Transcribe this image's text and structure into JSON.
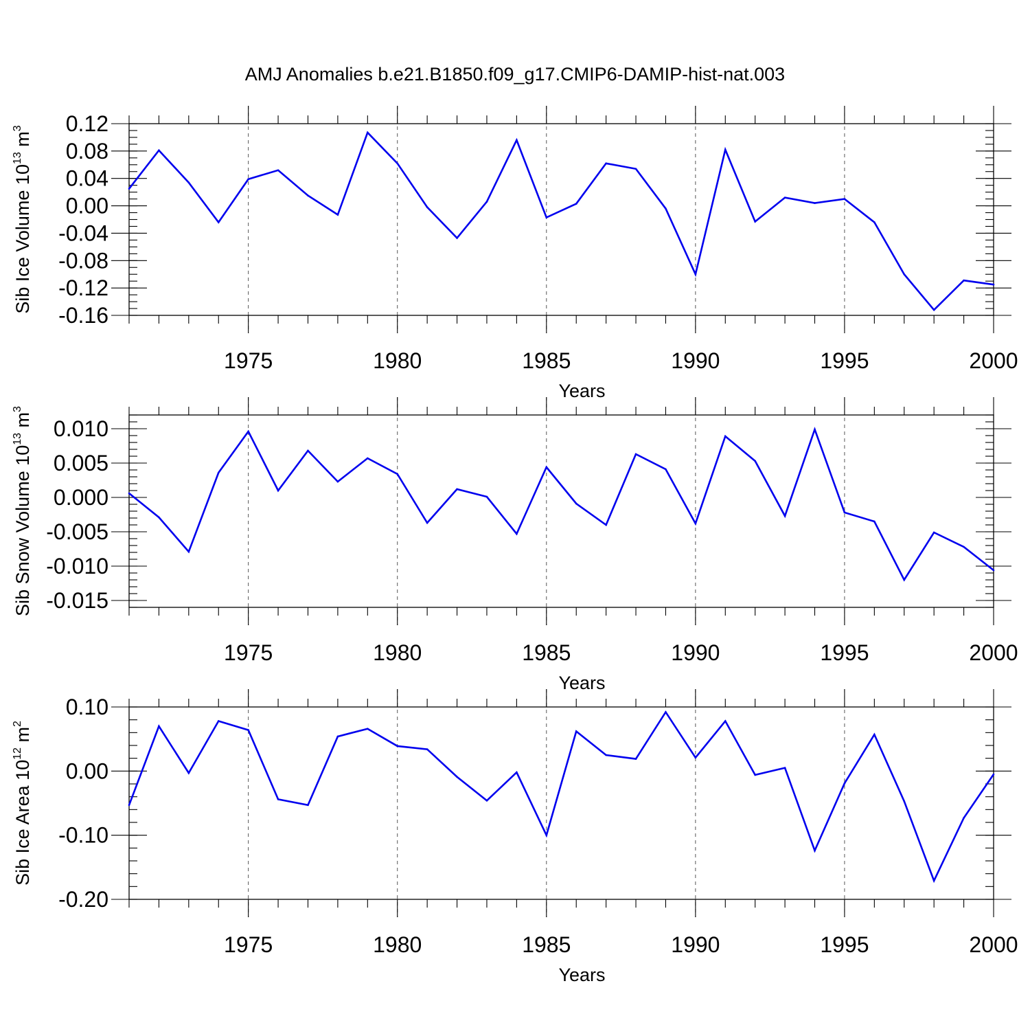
{
  "figure": {
    "title": "AMJ Anomalies b.e21.B1850.f09_g17.CMIP6-DAMIP-hist-nat.003"
  },
  "style": {
    "line_color": "#0000ee",
    "axis_color": "#000000",
    "grid_color": "#555555"
  },
  "chart_data": [
    {
      "type": "line",
      "id": "ice-volume",
      "ylabel_main": "Sib Ice Volume 10",
      "ylabel_exp": "13",
      "ylabel_unit": " m",
      "ylabel_unit_exp": "3",
      "xlabel": "Years",
      "xlim": [
        1971,
        2000
      ],
      "ylim": [
        -0.16,
        0.12
      ],
      "major_yticks": [
        -0.16,
        -0.12,
        -0.08,
        -0.04,
        0.0,
        0.04,
        0.08,
        0.12
      ],
      "ytick_labels": [
        "-0.16",
        "-0.12",
        "-0.08",
        "-0.04",
        "0.00",
        "0.04",
        "0.08",
        "0.12"
      ],
      "minor_ystep": 0.01,
      "major_xticks": [
        1975,
        1980,
        1985,
        1990,
        1995,
        2000
      ],
      "xtick_labels": [
        "1975",
        "1980",
        "1985",
        "1990",
        "1995",
        "2000"
      ],
      "grid_x": [
        1975,
        1980,
        1985,
        1990,
        1995
      ],
      "series": [
        {
          "name": "Sib Ice Volume",
          "x": [
            1971,
            1972,
            1973,
            1974,
            1975,
            1976,
            1977,
            1978,
            1979,
            1980,
            1981,
            1982,
            1983,
            1984,
            1985,
            1986,
            1987,
            1988,
            1989,
            1990,
            1991,
            1992,
            1993,
            1994,
            1995,
            1996,
            1997,
            1998,
            1999,
            2000
          ],
          "values": [
            0.025,
            0.081,
            0.034,
            -0.024,
            0.039,
            0.052,
            0.015,
            -0.013,
            0.107,
            0.062,
            -0.002,
            -0.047,
            0.006,
            0.096,
            -0.017,
            0.003,
            0.062,
            0.054,
            -0.004,
            -0.1,
            0.082,
            -0.023,
            0.012,
            0.004,
            0.01,
            -0.024,
            -0.1,
            -0.152,
            -0.109,
            -0.115
          ]
        }
      ]
    },
    {
      "type": "line",
      "id": "snow-volume",
      "ylabel_main": "Sib Snow Volume 10",
      "ylabel_exp": "13",
      "ylabel_unit": " m",
      "ylabel_unit_exp": "3",
      "xlabel": "Years",
      "xlim": [
        1971,
        2000
      ],
      "ylim": [
        -0.016,
        0.012
      ],
      "major_yticks": [
        -0.015,
        -0.01,
        -0.005,
        0.0,
        0.005,
        0.01
      ],
      "ytick_labels": [
        "-0.015",
        "-0.010",
        "-0.005",
        "0.000",
        "0.005",
        "0.010"
      ],
      "minor_ystep": 0.001,
      "major_xticks": [
        1975,
        1980,
        1985,
        1990,
        1995,
        2000
      ],
      "xtick_labels": [
        "1975",
        "1980",
        "1985",
        "1990",
        "1995",
        "2000"
      ],
      "grid_x": [
        1975,
        1980,
        1985,
        1990,
        1995
      ],
      "series": [
        {
          "name": "Sib Snow Volume",
          "x": [
            1971,
            1972,
            1973,
            1974,
            1975,
            1976,
            1977,
            1978,
            1979,
            1980,
            1981,
            1982,
            1983,
            1984,
            1985,
            1986,
            1987,
            1988,
            1989,
            1990,
            1991,
            1992,
            1993,
            1994,
            1995,
            1996,
            1997,
            1998,
            1999,
            2000
          ],
          "values": [
            0.0006,
            -0.0029,
            -0.0079,
            0.0036,
            0.0096,
            0.001,
            0.0068,
            0.0023,
            0.0057,
            0.0034,
            -0.0037,
            0.0012,
            0.0001,
            -0.0053,
            0.0044,
            -0.0009,
            -0.004,
            0.0063,
            0.0041,
            -0.0038,
            0.0089,
            0.0053,
            -0.0027,
            0.0099,
            -0.0022,
            -0.0035,
            -0.012,
            -0.0051,
            -0.0072,
            -0.0106
          ]
        }
      ]
    },
    {
      "type": "line",
      "id": "ice-area",
      "ylabel_main": "Sib Ice Area 10",
      "ylabel_exp": "12",
      "ylabel_unit": " m",
      "ylabel_unit_exp": "2",
      "xlabel": "Years",
      "xlim": [
        1971,
        2000
      ],
      "ylim": [
        -0.2,
        0.1
      ],
      "major_yticks": [
        -0.2,
        -0.1,
        0.0,
        0.1
      ],
      "ytick_labels": [
        "-0.20",
        "-0.10",
        "0.00",
        "0.10"
      ],
      "minor_ystep": 0.02,
      "major_xticks": [
        1975,
        1980,
        1985,
        1990,
        1995,
        2000
      ],
      "xtick_labels": [
        "1975",
        "1980",
        "1985",
        "1990",
        "1995",
        "2000"
      ],
      "grid_x": [
        1975,
        1980,
        1985,
        1990,
        1995
      ],
      "series": [
        {
          "name": "Sib Ice Area",
          "x": [
            1971,
            1972,
            1973,
            1974,
            1975,
            1976,
            1977,
            1978,
            1979,
            1980,
            1981,
            1982,
            1983,
            1984,
            1985,
            1986,
            1987,
            1988,
            1989,
            1990,
            1991,
            1992,
            1993,
            1994,
            1995,
            1996,
            1997,
            1998,
            1999,
            2000
          ],
          "values": [
            -0.053,
            0.07,
            -0.003,
            0.078,
            0.064,
            -0.044,
            -0.053,
            0.054,
            0.066,
            0.039,
            0.034,
            -0.009,
            -0.046,
            -0.002,
            -0.1,
            0.062,
            0.025,
            0.019,
            0.092,
            0.021,
            0.078,
            -0.006,
            0.005,
            -0.124,
            -0.019,
            0.057,
            -0.047,
            -0.171,
            -0.073,
            -0.005
          ]
        }
      ]
    }
  ]
}
